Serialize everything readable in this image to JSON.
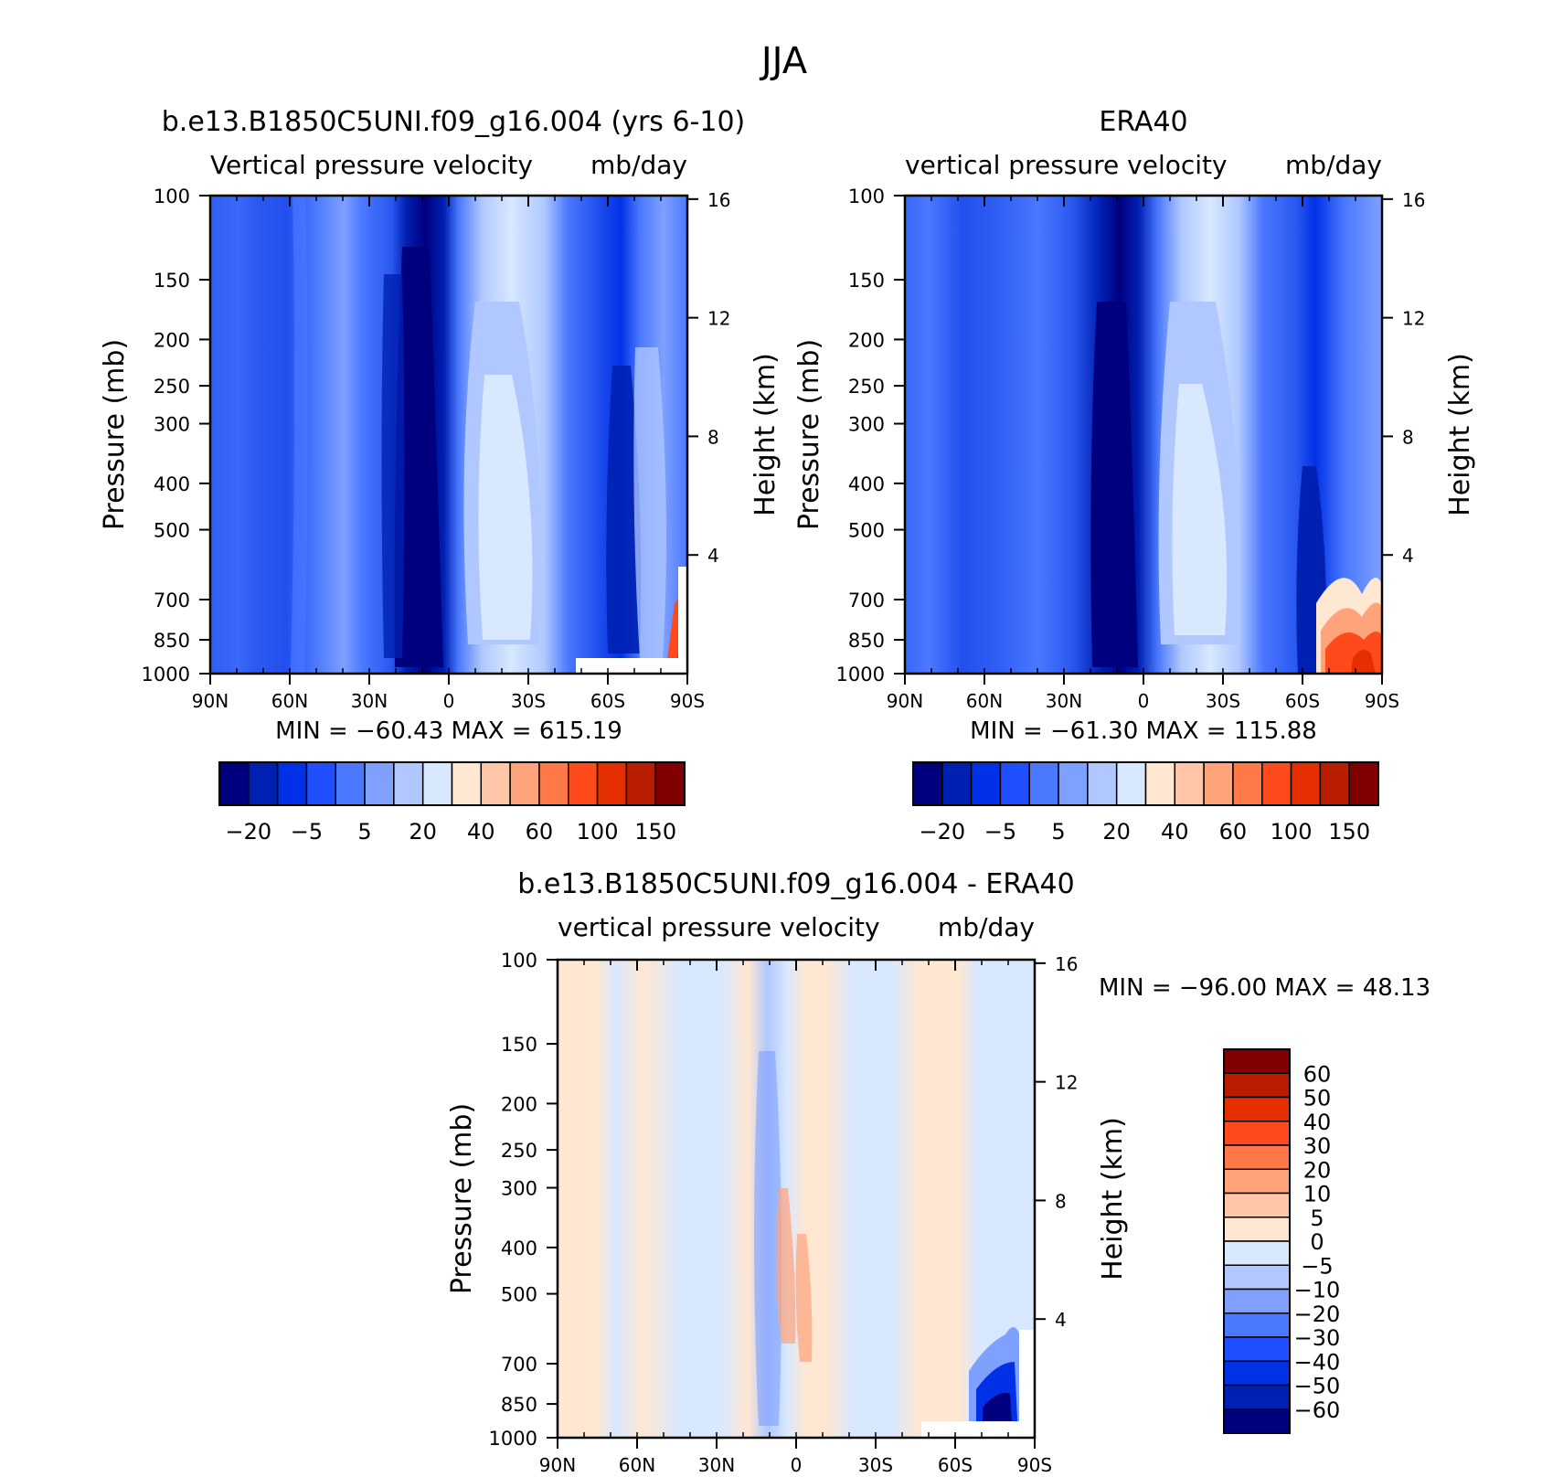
{
  "figure": {
    "title": "JJA"
  },
  "chart_data": [
    {
      "type": "contour",
      "title": "b.e13.B1850C5UNI.f09_g16.004 (yrs 6-10)",
      "subtitle_left": "Vertical pressure velocity",
      "subtitle_right": "mb/day",
      "ylabel": "Pressure (mb)",
      "y2label": "Height (km)",
      "x_ticks": [
        "90N",
        "60N",
        "30N",
        "0",
        "30S",
        "60S",
        "90S"
      ],
      "y_ticks": [
        "100",
        "150",
        "200",
        "250",
        "300",
        "400",
        "500",
        "700",
        "850",
        "1000"
      ],
      "y_scale": "log",
      "ylim": [
        1000,
        100
      ],
      "y2_ticks": [
        "16",
        "12",
        "8",
        "4"
      ],
      "stats": "MIN = -60.43   MAX = 615.19",
      "levels": [
        -40,
        -20,
        -10,
        -5,
        0,
        5,
        10,
        20,
        30,
        40,
        50,
        60,
        80,
        100,
        120,
        150
      ],
      "level_labels": [
        "-20",
        "-5",
        "5",
        "20",
        "40",
        "60",
        "100",
        "150"
      ],
      "colors": [
        "#00007f",
        "#0020b2",
        "#0031e6",
        "#1f4fff",
        "#4a78ff",
        "#7ea0ff",
        "#b0c8ff",
        "#d8e8ff",
        "#ffe7d2",
        "#ffc6a8",
        "#ffa37a",
        "#ff7848",
        "#ff4a1c",
        "#e52f00",
        "#b81d00",
        "#800000"
      ],
      "min": -60.43,
      "max": 615.19
    },
    {
      "type": "contour",
      "title": "ERA40",
      "subtitle_left": "vertical pressure velocity",
      "subtitle_right": "mb/day",
      "ylabel": "Pressure (mb)",
      "y2label": "Height (km)",
      "x_ticks": [
        "90N",
        "60N",
        "30N",
        "0",
        "30S",
        "60S",
        "90S"
      ],
      "y_ticks": [
        "100",
        "150",
        "200",
        "250",
        "300",
        "400",
        "500",
        "700",
        "850",
        "1000"
      ],
      "y_scale": "log",
      "ylim": [
        1000,
        100
      ],
      "y2_ticks": [
        "16",
        "12",
        "8",
        "4"
      ],
      "stats": "MIN = -61.30   MAX = 115.88",
      "levels": [
        -40,
        -20,
        -10,
        -5,
        0,
        5,
        10,
        20,
        30,
        40,
        50,
        60,
        80,
        100,
        120,
        150
      ],
      "level_labels": [
        "-20",
        "-5",
        "5",
        "20",
        "40",
        "60",
        "100",
        "150"
      ],
      "colors": [
        "#00007f",
        "#0020b2",
        "#0031e6",
        "#1f4fff",
        "#4a78ff",
        "#7ea0ff",
        "#b0c8ff",
        "#d8e8ff",
        "#ffe7d2",
        "#ffc6a8",
        "#ffa37a",
        "#ff7848",
        "#ff4a1c",
        "#e52f00",
        "#b81d00",
        "#800000"
      ],
      "min": -61.3,
      "max": 115.88
    },
    {
      "type": "contour",
      "title": "b.e13.B1850C5UNI.f09_g16.004 - ERA40",
      "subtitle_left": "vertical pressure velocity",
      "subtitle_right": "mb/day",
      "ylabel": "Pressure (mb)",
      "y2label": "Height (km)",
      "x_ticks": [
        "90N",
        "60N",
        "30N",
        "0",
        "30S",
        "60S",
        "90S"
      ],
      "y_ticks": [
        "100",
        "150",
        "200",
        "250",
        "300",
        "400",
        "500",
        "700",
        "850",
        "1000"
      ],
      "y_scale": "log",
      "ylim": [
        1000,
        100
      ],
      "y2_ticks": [
        "16",
        "12",
        "8",
        "4"
      ],
      "stats": "MIN = -96.00   MAX =   48.13",
      "levels": [
        60,
        50,
        40,
        30,
        20,
        10,
        5,
        0,
        -5,
        -10,
        -20,
        -30,
        -40,
        -50,
        -60
      ],
      "level_labels": [
        "60",
        "50",
        "40",
        "30",
        "20",
        "10",
        "5",
        "0",
        "-5",
        "-10",
        "-20",
        "-30",
        "-40",
        "-50",
        "-60"
      ],
      "colors": [
        "#800000",
        "#b81d00",
        "#e52f00",
        "#ff4a1c",
        "#ff7848",
        "#ffa37a",
        "#ffc6a8",
        "#ffe7d2",
        "#d8e8ff",
        "#b0c8ff",
        "#7ea0ff",
        "#4a78ff",
        "#1f4fff",
        "#0031e6",
        "#0020b2",
        "#00007f"
      ],
      "min": -96.0,
      "max": 48.13
    }
  ]
}
